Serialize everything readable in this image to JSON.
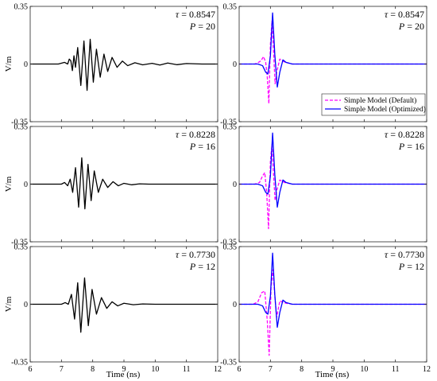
{
  "colors": {
    "black": "#000000",
    "magenta": "#ff00ff",
    "blue": "#0000ff",
    "axes": "#262626"
  },
  "figure": {
    "ylabel": "V/m",
    "xlabel": "Time (ns)",
    "xticks": [
      "6",
      "7",
      "8",
      "9",
      "10",
      "11",
      "12"
    ],
    "yticks": [
      "0.35",
      "0",
      "-0.35"
    ]
  },
  "legend": {
    "entries": [
      {
        "label": "Simple Model (Default)",
        "color": "#ff00ff",
        "style": "dashed"
      },
      {
        "label": "Simple Model (Optimized)",
        "color": "#0000ff",
        "style": "solid"
      }
    ]
  },
  "chart_data": [
    {
      "type": "line",
      "row": 0,
      "col": 0,
      "annotations": {
        "tau_prefix": "τ = ",
        "tau": "0.8547",
        "p_prefix": "P = ",
        "p": "20"
      },
      "xlim": [
        6,
        12
      ],
      "ylim": [
        -0.35,
        0.35
      ],
      "grid": false,
      "series": [
        {
          "color": "#000000",
          "style": "solid",
          "x": [
            6,
            6.9,
            7.1,
            7.2,
            7.25,
            7.3,
            7.35,
            7.4,
            7.45,
            7.52,
            7.62,
            7.72,
            7.82,
            7.92,
            8.02,
            8.12,
            8.24,
            8.36,
            8.48,
            8.62,
            8.78,
            8.95,
            9.12,
            9.35,
            9.6,
            9.9,
            10.15,
            10.4,
            10.7,
            11.0,
            11.5,
            12
          ],
          "y": [
            0,
            0,
            0.01,
            0.0,
            0.03,
            0.02,
            -0.04,
            0.05,
            -0.02,
            0.1,
            -0.13,
            0.14,
            -0.16,
            0.15,
            -0.11,
            0.09,
            -0.08,
            0.06,
            -0.045,
            0.04,
            -0.02,
            0.018,
            -0.01,
            0.008,
            -0.005,
            0.004,
            -0.006,
            0.006,
            -0.004,
            0.003,
            0.0,
            0.0
          ]
        }
      ]
    },
    {
      "type": "line",
      "row": 0,
      "col": 1,
      "annotations": {
        "tau_prefix": "τ = ",
        "tau": "0.8547",
        "p_prefix": "P = ",
        "p": "20"
      },
      "xlim": [
        6,
        12
      ],
      "ylim": [
        -0.35,
        0.35
      ],
      "grid": false,
      "series": [
        {
          "name": "Simple Model (Default)",
          "color": "#ff00ff",
          "style": "dashed",
          "x": [
            6,
            6.5,
            6.6,
            6.7,
            6.78,
            6.85,
            6.9,
            6.95,
            7.0,
            7.05,
            7.1,
            7.15,
            7.2,
            7.3,
            7.45,
            7.7,
            8,
            9,
            10,
            12
          ],
          "y": [
            0,
            0.0,
            0.008,
            0.02,
            0.045,
            0.01,
            -0.08,
            -0.24,
            0.12,
            0.26,
            0.08,
            -0.12,
            -0.05,
            0.03,
            0.012,
            0.0,
            0.0,
            0.0,
            0.0,
            0.0
          ]
        },
        {
          "name": "Simple Model (Optimized)",
          "color": "#0000ff",
          "style": "solid",
          "x": [
            6,
            6.6,
            6.75,
            6.85,
            6.92,
            7.0,
            7.07,
            7.14,
            7.22,
            7.3,
            7.4,
            7.5,
            7.7,
            8,
            12
          ],
          "y": [
            0,
            0.0,
            -0.01,
            -0.05,
            -0.06,
            0.05,
            0.31,
            0.06,
            -0.14,
            -0.05,
            0.025,
            0.01,
            0.0,
            0.0,
            0.0
          ]
        }
      ]
    },
    {
      "type": "line",
      "row": 1,
      "col": 0,
      "annotations": {
        "tau_prefix": "τ = ",
        "tau": "0.8228",
        "p_prefix": "P = ",
        "p": "16"
      },
      "xlim": [
        6,
        12
      ],
      "ylim": [
        -0.35,
        0.35
      ],
      "grid": false,
      "series": [
        {
          "color": "#000000",
          "style": "solid",
          "x": [
            6,
            7.0,
            7.1,
            7.2,
            7.28,
            7.36,
            7.45,
            7.55,
            7.65,
            7.75,
            7.85,
            7.95,
            8.05,
            8.18,
            8.32,
            8.48,
            8.65,
            8.82,
            9.0,
            9.25,
            9.5,
            9.8,
            10.2,
            10.6,
            11,
            12
          ],
          "y": [
            0,
            0,
            0.01,
            -0.01,
            0.03,
            -0.05,
            0.1,
            -0.14,
            0.16,
            -0.15,
            0.12,
            -0.1,
            0.08,
            -0.05,
            0.03,
            -0.02,
            0.015,
            -0.01,
            0.005,
            -0.004,
            0.002,
            0.0,
            0.0,
            0.0,
            0.0,
            0.0
          ]
        }
      ]
    },
    {
      "type": "line",
      "row": 1,
      "col": 1,
      "annotations": {
        "tau_prefix": "τ = ",
        "tau": "0.8228",
        "p_prefix": "P = ",
        "p": "16"
      },
      "xlim": [
        6,
        12
      ],
      "ylim": [
        -0.35,
        0.35
      ],
      "grid": false,
      "series": [
        {
          "name": "Simple Model (Default)",
          "color": "#ff00ff",
          "style": "dashed",
          "x": [
            6,
            6.5,
            6.65,
            6.75,
            6.82,
            6.88,
            6.94,
            7.0,
            7.05,
            7.1,
            7.15,
            7.2,
            7.3,
            7.45,
            7.7,
            8,
            12
          ],
          "y": [
            0,
            0.0,
            0.01,
            0.05,
            0.07,
            -0.05,
            -0.27,
            0.14,
            0.24,
            0.06,
            -0.1,
            -0.04,
            0.025,
            0.01,
            0.0,
            0.0,
            0.0
          ]
        },
        {
          "name": "Simple Model (Optimized)",
          "color": "#0000ff",
          "style": "solid",
          "x": [
            6,
            6.6,
            6.75,
            6.85,
            6.92,
            7.0,
            7.07,
            7.14,
            7.22,
            7.3,
            7.4,
            7.5,
            7.7,
            8,
            12
          ],
          "y": [
            0,
            0.0,
            -0.01,
            -0.05,
            -0.06,
            0.05,
            0.31,
            0.06,
            -0.14,
            -0.05,
            0.025,
            0.01,
            0.0,
            0.0,
            0.0
          ]
        }
      ]
    },
    {
      "type": "line",
      "row": 2,
      "col": 0,
      "annotations": {
        "tau_prefix": "τ = ",
        "tau": "0.7730",
        "p_prefix": "P = ",
        "p": "12"
      },
      "xlim": [
        6,
        12
      ],
      "ylim": [
        -0.35,
        0.35
      ],
      "grid": false,
      "series": [
        {
          "color": "#000000",
          "style": "solid",
          "x": [
            6,
            7.0,
            7.12,
            7.22,
            7.32,
            7.42,
            7.52,
            7.62,
            7.74,
            7.86,
            7.98,
            8.12,
            8.28,
            8.45,
            8.62,
            8.8,
            9.0,
            9.3,
            9.6,
            10,
            10.5,
            11,
            12
          ],
          "y": [
            0,
            0,
            0.01,
            0.0,
            0.06,
            -0.09,
            0.13,
            -0.17,
            0.16,
            -0.13,
            0.09,
            -0.06,
            0.04,
            -0.025,
            0.015,
            -0.01,
            0.006,
            -0.003,
            0.002,
            0.0,
            0.0,
            0.0,
            0.0
          ]
        }
      ]
    },
    {
      "type": "line",
      "row": 2,
      "col": 1,
      "annotations": {
        "tau_prefix": "τ = ",
        "tau": "0.7730",
        "p_prefix": "P = ",
        "p": "12"
      },
      "xlim": [
        6,
        12
      ],
      "ylim": [
        -0.35,
        0.35
      ],
      "grid": false,
      "series": [
        {
          "name": "Simple Model (Default)",
          "color": "#ff00ff",
          "style": "dashed",
          "x": [
            6,
            6.45,
            6.6,
            6.72,
            6.82,
            6.9,
            6.96,
            7.02,
            7.08,
            7.14,
            7.2,
            7.3,
            7.45,
            7.7,
            8,
            12
          ],
          "y": [
            0,
            0.0,
            0.015,
            0.07,
            0.08,
            -0.1,
            -0.31,
            0.1,
            0.21,
            0.05,
            -0.08,
            0.02,
            0.008,
            0.0,
            0.0,
            0.0
          ]
        },
        {
          "name": "Simple Model (Optimized)",
          "color": "#0000ff",
          "style": "solid",
          "x": [
            6,
            6.6,
            6.75,
            6.85,
            6.92,
            7.0,
            7.07,
            7.14,
            7.22,
            7.3,
            7.4,
            7.5,
            7.7,
            8,
            12
          ],
          "y": [
            0,
            0.0,
            -0.01,
            -0.05,
            -0.06,
            0.05,
            0.31,
            0.06,
            -0.14,
            -0.05,
            0.025,
            0.01,
            0.0,
            0.0,
            0.0
          ]
        }
      ]
    }
  ]
}
